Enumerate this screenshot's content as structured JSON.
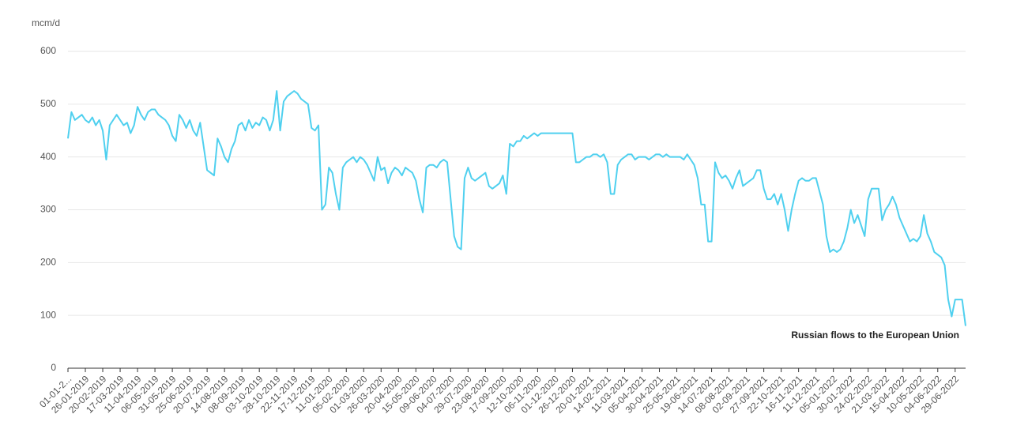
{
  "chart_data": {
    "type": "line",
    "y_label": "mcm/d",
    "annotation": "Russian flows to the European Union",
    "ylim": [
      0,
      600
    ],
    "yticks": [
      0,
      100,
      200,
      300,
      400,
      500,
      600
    ],
    "grid": true,
    "categories": [
      "01-01-2...",
      null,
      null,
      null,
      null,
      "26-01-2019",
      null,
      null,
      null,
      null,
      "20-02-2019",
      null,
      null,
      null,
      null,
      "17-03-2019",
      null,
      null,
      null,
      null,
      "11-04-2019",
      null,
      null,
      null,
      null,
      "06-05-2019",
      null,
      null,
      null,
      null,
      "31-05-2019",
      null,
      null,
      null,
      null,
      "25-06-2019",
      null,
      null,
      null,
      null,
      "20-07-2019",
      null,
      null,
      null,
      null,
      "14-08-2019",
      null,
      null,
      null,
      null,
      "08-09-2019",
      null,
      null,
      null,
      null,
      "03-10-2019",
      null,
      null,
      null,
      null,
      "28-10-2019",
      null,
      null,
      null,
      null,
      "22-11-2019",
      null,
      null,
      null,
      null,
      "17-12-2019",
      null,
      null,
      null,
      null,
      "11-01-2020",
      null,
      null,
      null,
      null,
      "05-02-2020",
      null,
      null,
      null,
      null,
      "01-03-2020",
      null,
      null,
      null,
      null,
      "26-03-2020",
      null,
      null,
      null,
      null,
      "20-04-2020",
      null,
      null,
      null,
      null,
      "15-05-2020",
      null,
      null,
      null,
      null,
      "09-06-2020",
      null,
      null,
      null,
      null,
      "04-07-2020",
      null,
      null,
      null,
      null,
      "29-07-2020",
      null,
      null,
      null,
      null,
      "23-08-2020",
      null,
      null,
      null,
      null,
      "17-09-2020",
      null,
      null,
      null,
      null,
      "12-10-2020",
      null,
      null,
      null,
      null,
      "06-11-2020",
      null,
      null,
      null,
      null,
      "01-12-2020",
      null,
      null,
      null,
      null,
      "26-12-2020",
      null,
      null,
      null,
      null,
      "20-01-2021",
      null,
      null,
      null,
      null,
      "14-02-2021",
      null,
      null,
      null,
      null,
      "11-03-2021",
      null,
      null,
      null,
      null,
      "05-04-2021",
      null,
      null,
      null,
      null,
      "30-04-2021",
      null,
      null,
      null,
      null,
      "25-05-2021",
      null,
      null,
      null,
      null,
      "19-06-2021",
      null,
      null,
      null,
      null,
      "14-07-2021",
      null,
      null,
      null,
      null,
      "08-08-2021",
      null,
      null,
      null,
      null,
      "02-09-2021",
      null,
      null,
      null,
      null,
      "27-09-2021",
      null,
      null,
      null,
      null,
      "22-10-2021",
      null,
      null,
      null,
      null,
      "16-11-2021",
      null,
      null,
      null,
      null,
      "11-12-2021",
      null,
      null,
      null,
      null,
      "05-01-2022",
      null,
      null,
      null,
      null,
      "30-01-2022",
      null,
      null,
      null,
      null,
      "24-02-2022",
      null,
      null,
      null,
      null,
      "21-03-2022",
      null,
      null,
      null,
      null,
      "15-04-2022",
      null,
      null,
      null,
      null,
      "10-05-2022",
      null,
      null,
      null,
      null,
      "04-06-2022",
      null,
      null,
      null,
      null,
      "29-06-2022",
      null,
      null,
      null
    ],
    "series": [
      {
        "color": "#4fd0ef",
        "values": [
          435,
          485,
          470,
          475,
          480,
          470,
          465,
          475,
          460,
          470,
          450,
          395,
          460,
          470,
          480,
          470,
          460,
          465,
          445,
          460,
          495,
          480,
          470,
          485,
          490,
          490,
          480,
          475,
          470,
          460,
          440,
          430,
          480,
          470,
          455,
          470,
          450,
          440,
          465,
          420,
          375,
          370,
          365,
          435,
          420,
          400,
          390,
          415,
          430,
          460,
          465,
          450,
          470,
          455,
          465,
          460,
          475,
          470,
          450,
          470,
          525,
          450,
          505,
          515,
          520,
          525,
          520,
          510,
          505,
          500,
          455,
          450,
          460,
          300,
          310,
          380,
          370,
          330,
          300,
          380,
          390,
          395,
          400,
          390,
          400,
          395,
          385,
          370,
          355,
          400,
          375,
          380,
          350,
          370,
          380,
          375,
          365,
          380,
          375,
          370,
          355,
          320,
          295,
          380,
          385,
          385,
          380,
          390,
          395,
          390,
          320,
          250,
          230,
          225,
          360,
          380,
          360,
          355,
          360,
          365,
          370,
          345,
          340,
          345,
          350,
          365,
          330,
          425,
          420,
          430,
          430,
          440,
          435,
          440,
          445,
          440,
          445,
          445,
          445,
          445,
          445,
          445,
          445,
          445,
          445,
          445,
          390,
          390,
          395,
          400,
          400,
          405,
          405,
          400,
          405,
          390,
          330,
          330,
          385,
          395,
          400,
          405,
          405,
          395,
          400,
          400,
          400,
          395,
          400,
          405,
          405,
          400,
          405,
          400,
          400,
          400,
          400,
          395,
          405,
          395,
          385,
          360,
          310,
          310,
          240,
          240,
          390,
          370,
          360,
          365,
          355,
          340,
          360,
          375,
          345,
          350,
          355,
          360,
          375,
          375,
          340,
          320,
          320,
          330,
          310,
          330,
          300,
          260,
          300,
          330,
          355,
          360,
          355,
          355,
          360,
          360,
          335,
          310,
          250,
          220,
          225,
          220,
          225,
          240,
          265,
          300,
          275,
          290,
          270,
          250,
          320,
          340,
          340,
          340,
          280,
          300,
          310,
          325,
          310,
          285,
          270,
          255,
          240,
          245,
          240,
          250,
          290,
          255,
          240,
          220,
          215,
          210,
          195,
          130,
          98,
          130,
          130,
          130,
          80
        ]
      }
    ]
  }
}
